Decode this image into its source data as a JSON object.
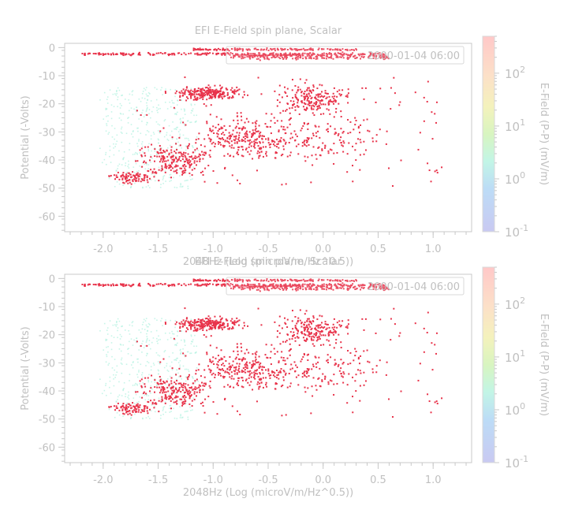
{
  "chart_data": [
    {
      "type": "scatter",
      "title": "EFI  E-Field spin plane, Scalar",
      "xlabel": "2048Hz (Log (microV/m/Hz^0.5))",
      "ylabel": "Potential (-Volts)",
      "xlim": [
        -2.35,
        1.35
      ],
      "ylim": [
        -65.5,
        1.5
      ],
      "xticks": [
        -2.0,
        -1.5,
        -1.0,
        -0.5,
        0.0,
        0.5,
        1.0
      ],
      "xtick_labels": [
        "-2.0",
        "-1.5",
        "-1.0",
        "-0.5",
        "0.0",
        "0.5",
        "1.0"
      ],
      "yticks": [
        0,
        -10,
        -20,
        -30,
        -40,
        -50,
        -60
      ],
      "ytick_labels": [
        "0",
        "-10",
        "-20",
        "-30",
        "-40",
        "-50",
        "-60"
      ],
      "legend": {
        "label": "2000-01-04 06:00",
        "placement": "top-right"
      },
      "colorbar": {
        "label": "E-Field (P-P) (mV/m)",
        "scale": "log",
        "range": [
          0.1,
          500
        ],
        "tick_labels": [
          {
            "base": "10",
            "exp": "-1"
          },
          {
            "base": "10",
            "exp": "0"
          },
          {
            "base": "10",
            "exp": "1"
          },
          {
            "base": "10",
            "exp": "2"
          }
        ]
      },
      "series": [
        {
          "color": "#e8334a",
          "region": "dense bands near 0 V, x -2.2 to 0.6, plus scattered cloud -10 V to -49 V, x -1.9 to 1.1"
        },
        {
          "color": "#a8f0dc",
          "region": "faint cloud x -2.0 to -1.2, -14 V to -50 V"
        }
      ]
    },
    {
      "type": "scatter",
      "title": "EFI  E-Field spin plane, Scalar",
      "xlabel": "2048Hz (Log (microV/m/Hz^0.5))",
      "ylabel": "Potential (-Volts)",
      "xlim": [
        -2.35,
        1.35
      ],
      "ylim": [
        -65.5,
        1.5
      ],
      "xticks": [
        -2.0,
        -1.5,
        -1.0,
        -0.5,
        0.0,
        0.5,
        1.0
      ],
      "xtick_labels": [
        "-2.0",
        "-1.5",
        "-1.0",
        "-0.5",
        "0.0",
        "0.5",
        "1.0"
      ],
      "yticks": [
        0,
        -10,
        -20,
        -30,
        -40,
        -50,
        -60
      ],
      "ytick_labels": [
        "0",
        "-10",
        "-20",
        "-30",
        "-40",
        "-50",
        "-60"
      ],
      "legend": {
        "label": "2000-01-04 06:00",
        "placement": "top-right"
      },
      "colorbar": {
        "label": "E-Field (P-P) (mV/m)",
        "scale": "log",
        "range": [
          0.1,
          500
        ],
        "tick_labels": [
          {
            "base": "10",
            "exp": "-1"
          },
          {
            "base": "10",
            "exp": "0"
          },
          {
            "base": "10",
            "exp": "1"
          },
          {
            "base": "10",
            "exp": "2"
          }
        ]
      },
      "series": [
        {
          "color": "#e8334a",
          "region": "dense bands near 0 V, x -2.2 to 0.6, plus scattered cloud -10 V to -49 V, x -1.9 to 1.1"
        },
        {
          "color": "#a8f0dc",
          "region": "faint cloud x -2.0 to -1.2, -14 V to -50 V"
        }
      ]
    }
  ],
  "colors": {
    "axis": "#c8c8c8",
    "text": "#c0c0c0",
    "points_primary": "#e8334a",
    "points_faint": "#a8f0dc"
  }
}
